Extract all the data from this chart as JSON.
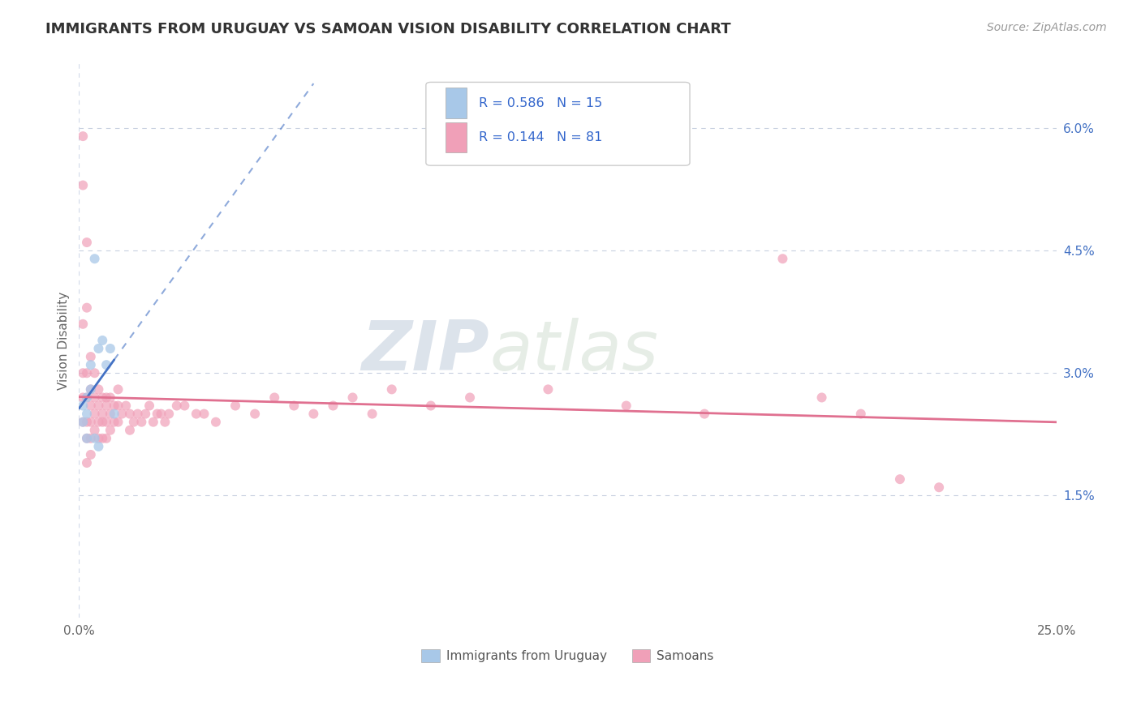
{
  "title": "IMMIGRANTS FROM URUGUAY VS SAMOAN VISION DISABILITY CORRELATION CHART",
  "source": "Source: ZipAtlas.com",
  "ylabel": "Vision Disability",
  "xmin": 0.0,
  "xmax": 0.25,
  "ymin": 0.0,
  "ymax": 0.068,
  "yticks": [
    0.015,
    0.03,
    0.045,
    0.06
  ],
  "ytick_labels": [
    "1.5%",
    "3.0%",
    "4.5%",
    "6.0%"
  ],
  "xticks": [
    0.0,
    0.25
  ],
  "xtick_labels": [
    "0.0%",
    "25.0%"
  ],
  "watermark_zip": "ZIP",
  "watermark_atlas": "atlas",
  "legend_r1": "0.586",
  "legend_n1": "15",
  "legend_r2": "0.144",
  "legend_n2": "81",
  "legend_label1": "Immigrants from Uruguay",
  "legend_label2": "Samoans",
  "color_uruguay": "#a8c8e8",
  "color_samoans": "#f0a0b8",
  "trendline_uruguay": "#4472c4",
  "trendline_samoans": "#e07090",
  "dashed_line_color": "#c8d0e0",
  "background_color": "#ffffff",
  "title_fontsize": 13,
  "axis_fontsize": 11,
  "tick_fontsize": 11,
  "source_fontsize": 10,
  "uruguay_x": [
    0.001,
    0.001,
    0.002,
    0.002,
    0.002,
    0.003,
    0.003,
    0.004,
    0.004,
    0.005,
    0.005,
    0.006,
    0.007,
    0.008,
    0.009
  ],
  "uruguay_y": [
    0.026,
    0.024,
    0.027,
    0.025,
    0.022,
    0.028,
    0.031,
    0.044,
    0.022,
    0.033,
    0.021,
    0.034,
    0.031,
    0.033,
    0.025
  ],
  "samoan_x": [
    0.001,
    0.001,
    0.001,
    0.001,
    0.001,
    0.001,
    0.002,
    0.002,
    0.002,
    0.002,
    0.002,
    0.002,
    0.002,
    0.003,
    0.003,
    0.003,
    0.003,
    0.003,
    0.003,
    0.004,
    0.004,
    0.004,
    0.004,
    0.005,
    0.005,
    0.005,
    0.005,
    0.006,
    0.006,
    0.006,
    0.006,
    0.007,
    0.007,
    0.007,
    0.007,
    0.008,
    0.008,
    0.008,
    0.009,
    0.009,
    0.01,
    0.01,
    0.01,
    0.011,
    0.012,
    0.013,
    0.013,
    0.014,
    0.015,
    0.016,
    0.017,
    0.018,
    0.019,
    0.02,
    0.021,
    0.022,
    0.023,
    0.025,
    0.027,
    0.03,
    0.032,
    0.035,
    0.04,
    0.045,
    0.05,
    0.055,
    0.06,
    0.065,
    0.07,
    0.075,
    0.08,
    0.09,
    0.1,
    0.12,
    0.14,
    0.16,
    0.18,
    0.19,
    0.2,
    0.21,
    0.22
  ],
  "samoan_y": [
    0.059,
    0.053,
    0.036,
    0.03,
    0.027,
    0.024,
    0.046,
    0.038,
    0.03,
    0.027,
    0.024,
    0.022,
    0.019,
    0.032,
    0.028,
    0.026,
    0.024,
    0.022,
    0.02,
    0.03,
    0.027,
    0.025,
    0.023,
    0.028,
    0.026,
    0.024,
    0.022,
    0.027,
    0.025,
    0.024,
    0.022,
    0.027,
    0.026,
    0.024,
    0.022,
    0.027,
    0.025,
    0.023,
    0.026,
    0.024,
    0.028,
    0.026,
    0.024,
    0.025,
    0.026,
    0.025,
    0.023,
    0.024,
    0.025,
    0.024,
    0.025,
    0.026,
    0.024,
    0.025,
    0.025,
    0.024,
    0.025,
    0.026,
    0.026,
    0.025,
    0.025,
    0.024,
    0.026,
    0.025,
    0.027,
    0.026,
    0.025,
    0.026,
    0.027,
    0.025,
    0.028,
    0.026,
    0.027,
    0.028,
    0.026,
    0.025,
    0.044,
    0.027,
    0.025,
    0.017,
    0.016
  ]
}
